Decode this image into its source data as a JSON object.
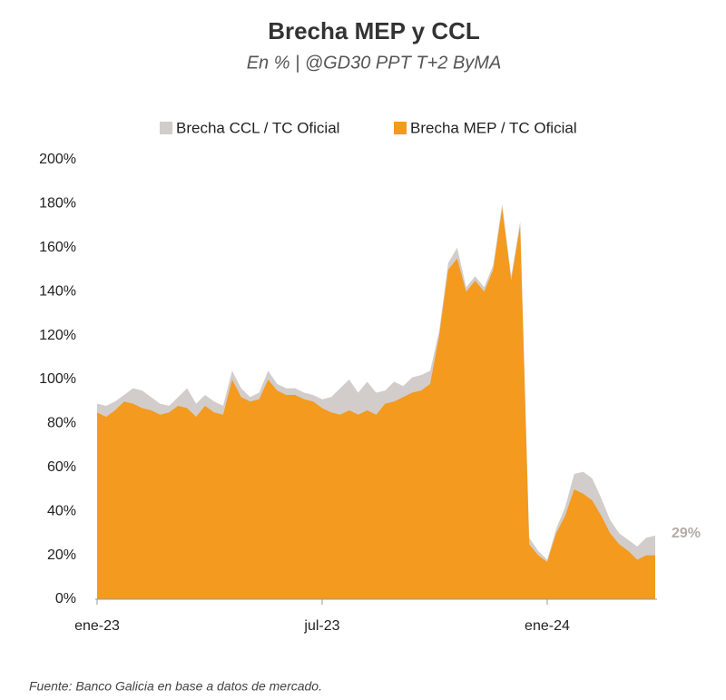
{
  "chart_data": {
    "type": "area",
    "title": "Brecha MEP y CCL",
    "subtitle": "En % | @GD30 PPT T+2 ByMA",
    "source": "Fuente: Banco Galicia en base a datos de mercado.",
    "annotation": "29%",
    "categories": [
      "ene-23",
      null,
      null,
      null,
      null,
      null,
      null,
      null,
      null,
      null,
      null,
      null,
      null,
      null,
      null,
      null,
      null,
      null,
      null,
      null,
      null,
      null,
      null,
      null,
      null,
      "jul-23",
      null,
      null,
      null,
      null,
      null,
      null,
      null,
      null,
      null,
      null,
      null,
      null,
      null,
      null,
      null,
      null,
      null,
      null,
      null,
      null,
      null,
      null,
      null,
      null,
      "ene-24",
      null,
      null,
      null,
      null,
      null,
      null,
      null,
      null,
      null,
      null,
      null,
      null
    ],
    "series": [
      {
        "name": "Brecha CCL / TC Oficial",
        "color": "#d2cdca",
        "values": [
          89,
          88,
          90,
          93,
          96,
          95,
          92,
          89,
          88,
          92,
          96,
          89,
          93,
          90,
          88,
          104,
          96,
          92,
          94,
          104,
          98,
          96,
          96,
          94,
          93,
          91,
          92,
          96,
          100,
          94,
          99,
          94,
          95,
          99,
          97,
          101,
          102,
          104,
          122,
          153,
          160,
          142,
          147,
          142,
          152,
          180,
          147,
          172,
          28,
          22,
          18,
          32,
          42,
          57,
          58,
          55,
          46,
          36,
          30,
          27,
          24,
          28,
          29
        ]
      },
      {
        "name": "Brecha MEP / TC Oficial",
        "color": "#f39a1f",
        "values": [
          85,
          83,
          86,
          90,
          89,
          87,
          86,
          84,
          85,
          88,
          87,
          83,
          88,
          85,
          84,
          100,
          92,
          90,
          91,
          100,
          95,
          93,
          93,
          91,
          90,
          87,
          85,
          84,
          86,
          84,
          86,
          84,
          89,
          90,
          92,
          94,
          95,
          98,
          120,
          150,
          155,
          140,
          145,
          140,
          150,
          178,
          145,
          170,
          25,
          20,
          17,
          30,
          38,
          50,
          48,
          45,
          38,
          30,
          25,
          22,
          18,
          20,
          20
        ]
      }
    ],
    "ylim": [
      0,
      200
    ],
    "yticks": [
      {
        "value": 0,
        "label": "0%"
      },
      {
        "value": 20,
        "label": "20%"
      },
      {
        "value": 40,
        "label": "40%"
      },
      {
        "value": 60,
        "label": "60%"
      },
      {
        "value": 80,
        "label": "80%"
      },
      {
        "value": 100,
        "label": "100%"
      },
      {
        "value": 120,
        "label": "120%"
      },
      {
        "value": 140,
        "label": "140%"
      },
      {
        "value": 160,
        "label": "160%"
      },
      {
        "value": 180,
        "label": "180%"
      },
      {
        "value": 200,
        "label": "200%"
      }
    ],
    "legend": "top"
  }
}
